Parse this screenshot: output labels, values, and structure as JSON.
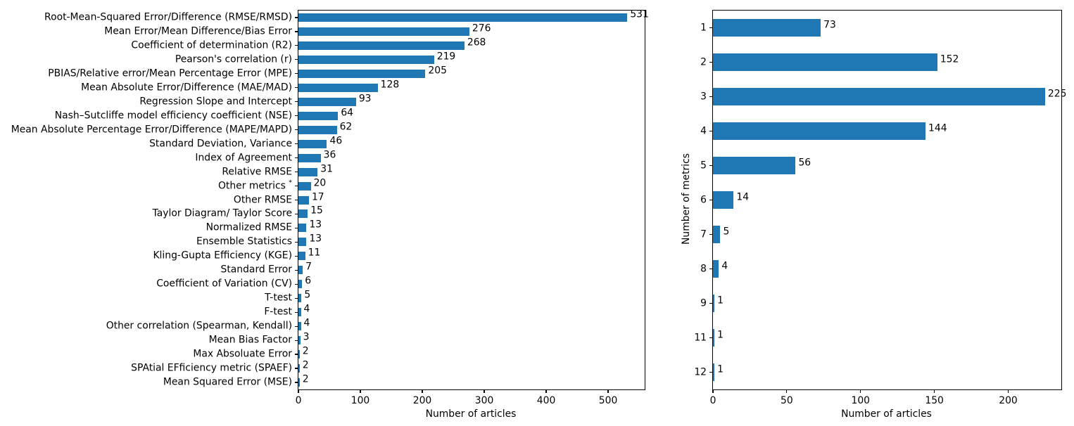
{
  "figure": {
    "background_color": "#ffffff",
    "bar_color": "#1f77b4",
    "text_color": "#000000",
    "axis_color": "#000000"
  },
  "chart_data": [
    {
      "type": "bar",
      "orientation": "horizontal",
      "title": "",
      "xlabel": "Number of articles",
      "ylabel": "",
      "categories": [
        "Root-Mean-Squared Error/Difference (RMSE/RMSD)",
        "Mean Error/Mean Difference/Bias Error",
        "Coefficient of determination (R2)",
        "Pearson's correlation (r)",
        "PBIAS/Relative error/Mean Percentage Error (MPE)",
        "Mean Absolute Error/Difference (MAE/MAD)",
        "Regression Slope and Intercept",
        "Nash–Sutcliffe model efficiency coefficient (NSE)",
        "Mean Absolute Percentage Error/Difference (MAPE/MAPD)",
        "Standard Deviation, Variance",
        "Index of Agreement",
        "Relative RMSE",
        "Other metrics *",
        "Other RMSE",
        "Taylor Diagram/ Taylor Score",
        "Normalized RMSE",
        "Ensemble Statistics",
        "Kling-Gupta Efficiency (KGE)",
        "Standard Error",
        "Coefficient of Variation (CV)",
        "T-test",
        "F-test",
        "Other correlation (Spearman, Kendall)",
        "Mean Bias Factor",
        "Max Absoluate Error",
        "SPAtial EFficiency metric (SPAEF)",
        "Mean Squared Error (MSE)"
      ],
      "values": [
        531,
        276,
        268,
        219,
        205,
        128,
        93,
        64,
        62,
        46,
        36,
        31,
        20,
        17,
        15,
        13,
        13,
        11,
        7,
        6,
        5,
        4,
        4,
        3,
        2,
        2,
        2
      ],
      "value_labels_shown": true,
      "xlim": [
        0,
        559
      ],
      "xticks": [
        0,
        100,
        200,
        300,
        400,
        500
      ],
      "grid": false,
      "legend": "none"
    },
    {
      "type": "bar",
      "orientation": "horizontal",
      "title": "",
      "xlabel": "Number of articles",
      "ylabel": "Number of metrics",
      "categories": [
        "1",
        "2",
        "3",
        "4",
        "5",
        "6",
        "7",
        "8",
        "9",
        "11",
        "12"
      ],
      "values": [
        73,
        152,
        225,
        144,
        56,
        14,
        5,
        4,
        1,
        1,
        1
      ],
      "value_labels_shown": true,
      "xlim": [
        0,
        236
      ],
      "xticks": [
        0,
        50,
        100,
        150,
        200
      ],
      "grid": false,
      "legend": "none"
    }
  ]
}
